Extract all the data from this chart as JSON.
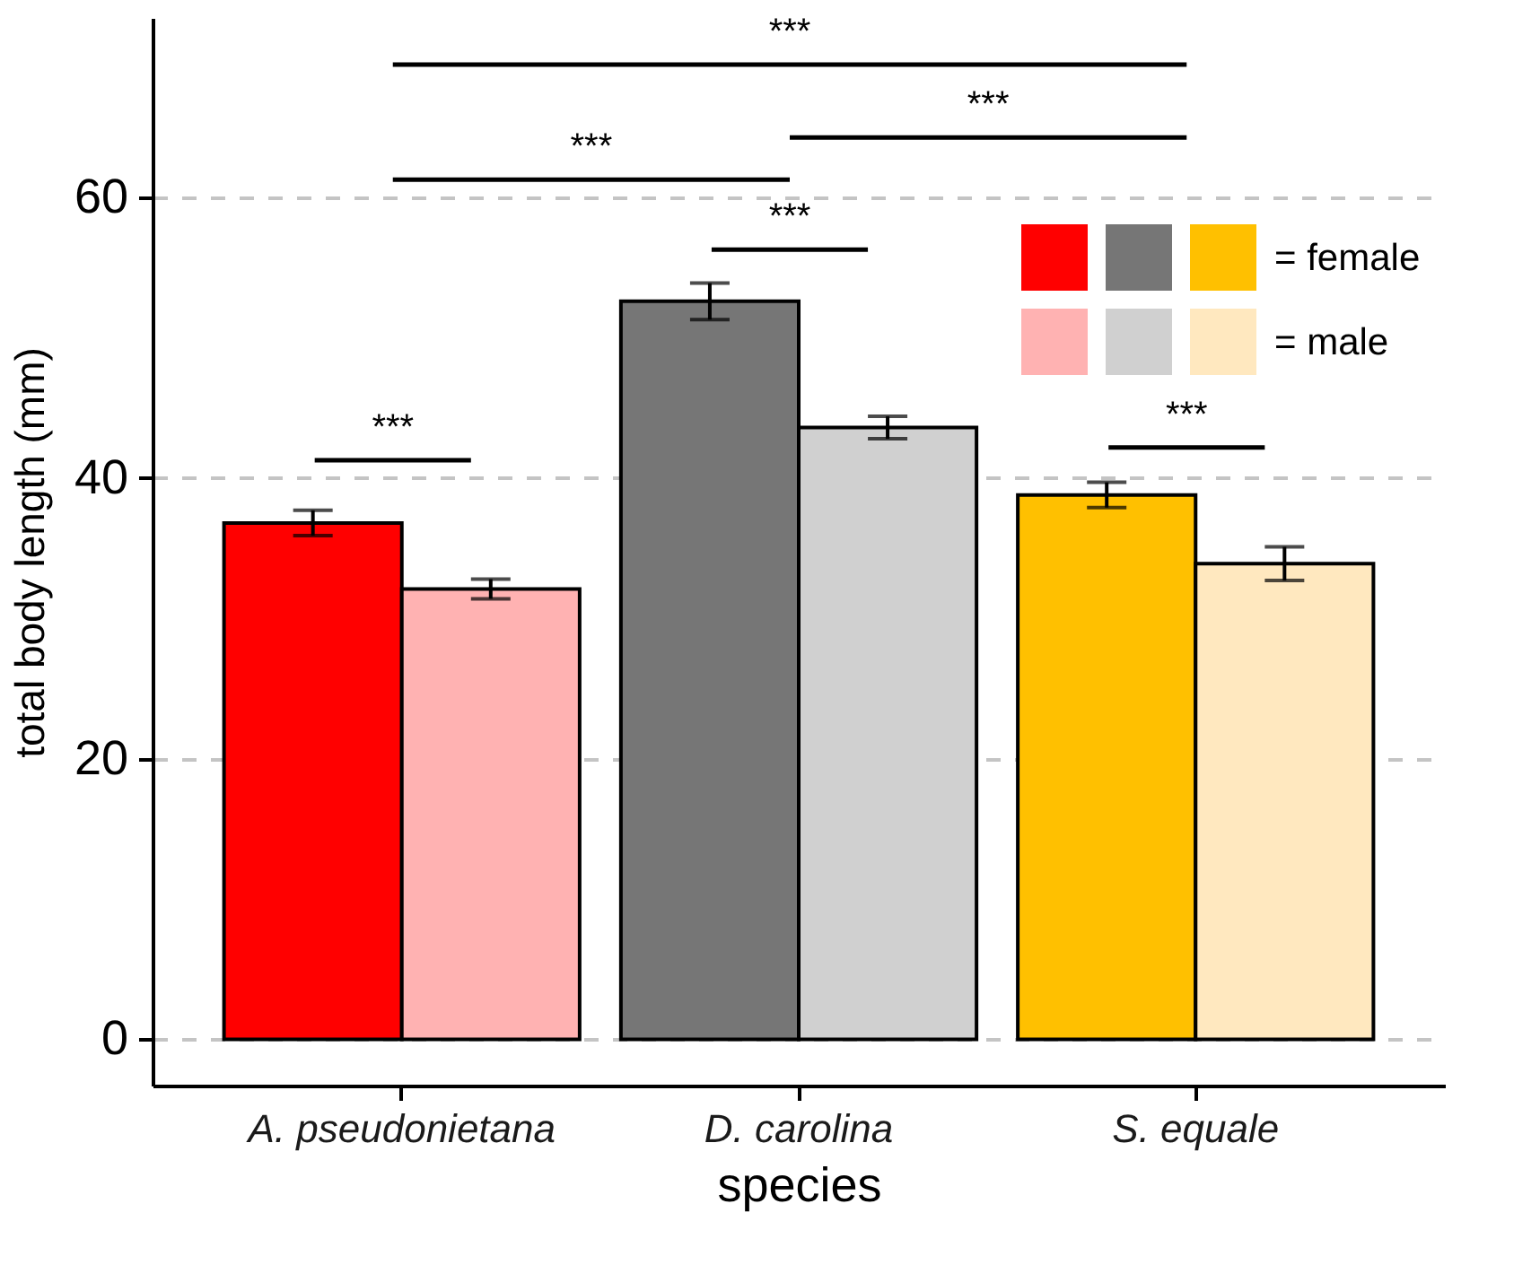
{
  "chart_data": {
    "type": "bar",
    "xlabel": "species",
    "ylabel": "total body length (mm)",
    "categories": [
      "A. pseudonietana",
      "D. carolina",
      "S. equale"
    ],
    "series": [
      {
        "name": "= female",
        "colors": [
          "#ff0000",
          "#767676",
          "#ffc000"
        ],
        "values": [
          36.8,
          52.6,
          38.8
        ],
        "errors": [
          0.9,
          1.3,
          0.9
        ]
      },
      {
        "name": "= male",
        "colors": [
          "#ffb2b2",
          "#d0d0d0",
          "#ffe8bf"
        ],
        "values": [
          32.1,
          43.6,
          33.9
        ],
        "errors": [
          0.7,
          0.8,
          1.2
        ]
      }
    ],
    "ylim": [
      -3.3,
      72.8
    ],
    "yticks": [
      0,
      20,
      40,
      60
    ],
    "grid": "y",
    "legend": "top right",
    "annotations": [
      "***",
      "***",
      "***",
      "***",
      "***",
      "***"
    ]
  }
}
